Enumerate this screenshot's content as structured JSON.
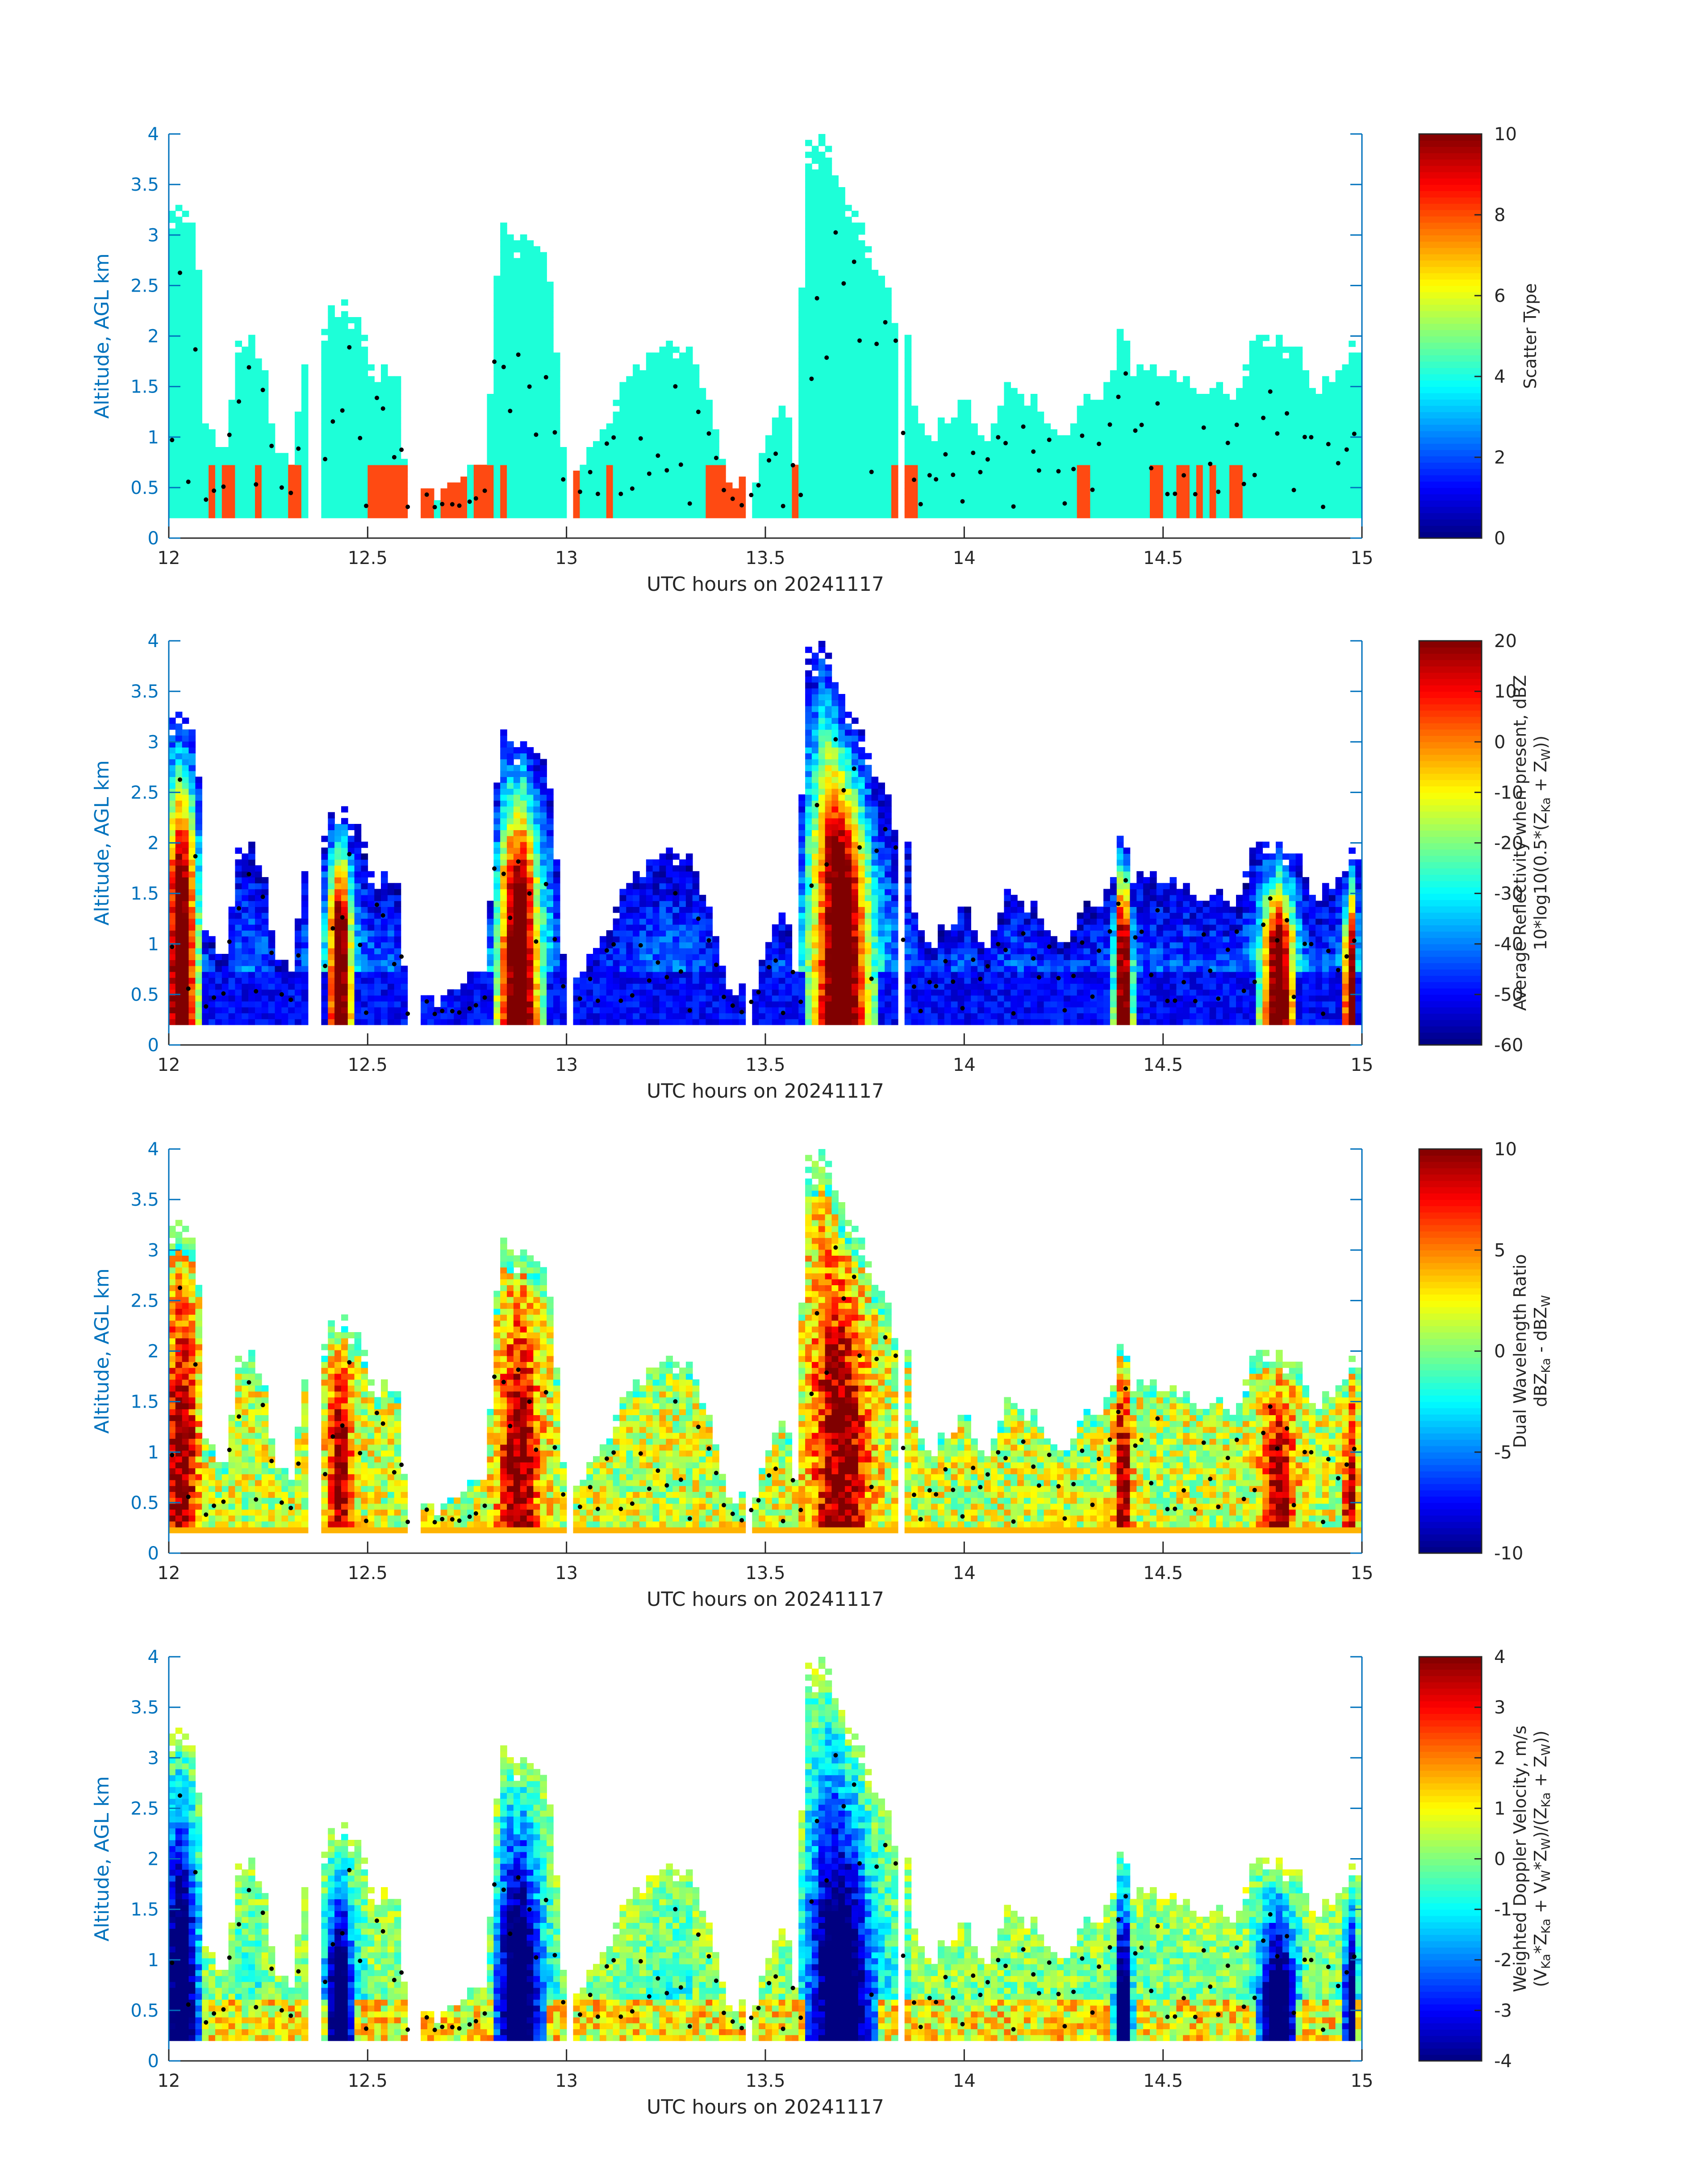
{
  "colors": {
    "axis_y": "#0072BD",
    "axis_x": "#262626",
    "text": "#262626",
    "scatter_main": "#1DFFD8",
    "scatter_alt": "#FF4A12",
    "dots": "#000000"
  },
  "chart_data": [
    {
      "type": "heatmap",
      "x_range": [
        12,
        15
      ],
      "y_range": [
        0,
        4
      ],
      "xticks": [
        "12",
        "12.5",
        "13",
        "13.5",
        "14",
        "14.5",
        "15"
      ],
      "yticks": [
        "0",
        "0.5",
        "1",
        "1.5",
        "2",
        "2.5",
        "3",
        "3.5",
        "4"
      ],
      "xlabel": "UTC hours on 20241117",
      "ylabel": "Altitude, AGL km",
      "colorbar": {
        "range": [
          0,
          10
        ],
        "ticks": [
          "0",
          "2",
          "4",
          "6",
          "8",
          "10"
        ],
        "label_lines": [
          "Scatter Type"
        ],
        "colormap": "jet"
      },
      "data_summary": {
        "dominant_value": 4,
        "secondary_value": 8.5,
        "cloud_tops_km": [
          [
            12.0,
            3.3
          ],
          [
            12.2,
            2.0
          ],
          [
            12.45,
            2.3
          ],
          [
            12.9,
            3.05
          ],
          [
            13.2,
            1.9
          ],
          [
            13.65,
            4.0
          ],
          [
            13.85,
            2.0
          ],
          [
            14.1,
            1.5
          ],
          [
            14.4,
            2.5
          ],
          [
            14.8,
            2.0
          ],
          [
            15.0,
            2.0
          ]
        ]
      }
    },
    {
      "type": "heatmap",
      "x_range": [
        12,
        15
      ],
      "y_range": [
        0,
        4
      ],
      "xticks": [
        "12",
        "12.5",
        "13",
        "13.5",
        "14",
        "14.5",
        "15"
      ],
      "yticks": [
        "0",
        "0.5",
        "1",
        "1.5",
        "2",
        "2.5",
        "3",
        "3.5",
        "4"
      ],
      "xlabel": "UTC hours on 20241117",
      "ylabel": "Altitude, AGL km",
      "colorbar": {
        "range": [
          -60,
          20
        ],
        "ticks": [
          "-60",
          "-50",
          "-40",
          "-30",
          "-20",
          "-10",
          "0",
          "10",
          "20"
        ],
        "label_lines": [
          "Average Reflectivity when present, dBZ",
          "10*log10(0.5*(Z_Ka + Z_W))"
        ],
        "colormap": "jet"
      },
      "data_summary": {
        "max_dbz_in_cores": 15,
        "background_dbz": -55
      }
    },
    {
      "type": "heatmap",
      "x_range": [
        12,
        15
      ],
      "y_range": [
        0,
        4
      ],
      "xticks": [
        "12",
        "12.5",
        "13",
        "13.5",
        "14",
        "14.5",
        "15"
      ],
      "yticks": [
        "0",
        "0.5",
        "1",
        "1.5",
        "2",
        "2.5",
        "3",
        "3.5",
        "4"
      ],
      "xlabel": "UTC hours on 20241117",
      "ylabel": "Altitude, AGL km",
      "colorbar": {
        "range": [
          -10,
          10
        ],
        "ticks": [
          "-10",
          "-5",
          "0",
          "5",
          "10"
        ],
        "label_lines": [
          "Dual Wavelength Ratio",
          "dBZ_Ka - dBZ_W"
        ],
        "colormap": "jet"
      },
      "data_summary": {
        "core_dwr_db": 10,
        "typical_dwr_db": 2
      }
    },
    {
      "type": "heatmap",
      "x_range": [
        12,
        15
      ],
      "y_range": [
        0,
        4
      ],
      "xticks": [
        "12",
        "12.5",
        "13",
        "13.5",
        "14",
        "14.5",
        "15"
      ],
      "yticks": [
        "0",
        "0.5",
        "1",
        "1.5",
        "2",
        "2.5",
        "3",
        "3.5",
        "4"
      ],
      "xlabel": "UTC hours on 20241117",
      "ylabel": "Altitude, AGL km",
      "colorbar": {
        "range": [
          -4,
          4
        ],
        "ticks": [
          "-4",
          "-3",
          "-2",
          "-1",
          "0",
          "1",
          "2",
          "3",
          "4"
        ],
        "label_lines": [
          "Weighted Doppler Velocity, m/s",
          "(V_Ka*Z_Ka + V_W*Z_W)/(Z_Ka + Z_W))"
        ],
        "colormap": "jet"
      },
      "data_summary": {
        "core_velocity_ms": -4,
        "typical_velocity_ms": 0
      }
    }
  ]
}
